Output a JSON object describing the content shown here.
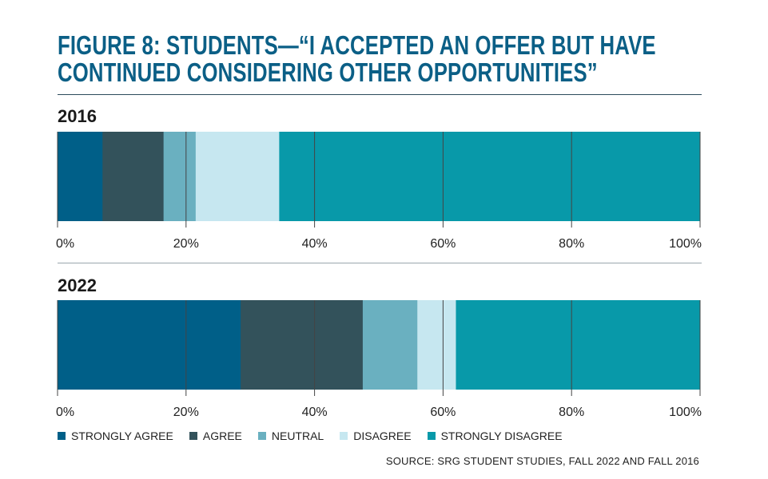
{
  "title_lines": [
    "FIGURE 8: STUDENTS—“I ACCEPTED AN OFFER BUT HAVE",
    "CONTINUED CONSIDERING OTHER OPPORTUNITIES”"
  ],
  "source": "SOURCE: SRG STUDENT STUDIES, FALL 2022 AND FALL 2016",
  "chart_data": [
    {
      "type": "bar",
      "orientation": "horizontal",
      "stacked": true,
      "title": "2016",
      "categories": [
        "STRONGLY AGREE",
        "AGREE",
        "NEUTRAL",
        "DISAGREE",
        "STRONGLY DISAGREE"
      ],
      "values": [
        7,
        9.5,
        5,
        13,
        65.5
      ],
      "xlim": [
        0,
        100
      ],
      "xticks": [
        "0%",
        "20%",
        "40%",
        "60%",
        "80%",
        "100%"
      ]
    },
    {
      "type": "bar",
      "orientation": "horizontal",
      "stacked": true,
      "title": "2022",
      "categories": [
        "STRONGLY AGREE",
        "AGREE",
        "NEUTRAL",
        "DISAGREE",
        "STRONGLY DISAGREE"
      ],
      "values": [
        28.5,
        19,
        8.5,
        6,
        38
      ],
      "xlim": [
        0,
        100
      ],
      "xticks": [
        "0%",
        "20%",
        "40%",
        "60%",
        "80%",
        "100%"
      ]
    }
  ],
  "legend": [
    {
      "label": "STRONGLY AGREE",
      "color": "#005f88"
    },
    {
      "label": "AGREE",
      "color": "#33525b"
    },
    {
      "label": "NEUTRAL",
      "color": "#6ab0c0"
    },
    {
      "label": "DISAGREE",
      "color": "#c6e7f0"
    },
    {
      "label": "STRONGLY DISAGREE",
      "color": "#0899a9"
    }
  ]
}
